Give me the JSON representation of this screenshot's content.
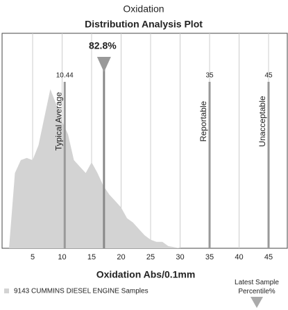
{
  "chart_data": {
    "type": "area",
    "title": "Oxidation",
    "subtitle": "Distribution Analysis Plot",
    "x_label": "Oxidation Abs/0.1mm",
    "x": [
      1,
      2,
      3,
      4,
      5,
      6,
      7,
      8,
      9,
      10,
      11,
      12,
      13,
      14,
      15,
      16,
      17,
      18,
      19,
      20,
      21,
      22,
      23,
      24,
      25,
      26,
      27,
      28,
      30
    ],
    "series": [
      {
        "name": "9143 CUMMINS DIESEL ENGINE Samples",
        "color": "#d3d3d3",
        "values": [
          0,
          35,
          41,
          42,
          41,
          48,
          61,
          74,
          67,
          59,
          53,
          41,
          38,
          35,
          40,
          35,
          29,
          25,
          22,
          19,
          14,
          12,
          9,
          6,
          4,
          3,
          3,
          1,
          0
        ]
      }
    ],
    "xlim": [
      0,
      48
    ],
    "xticks": [
      5,
      10,
      15,
      20,
      25,
      30,
      35,
      40,
      45
    ],
    "ylim": [
      0,
      100
    ],
    "grid": true,
    "reference_lines": [
      {
        "name": "Typical Average",
        "value": 10.44
      },
      {
        "name": "Reportable",
        "value": 35
      },
      {
        "name": "Unacceptable",
        "value": 45
      }
    ],
    "latest_sample": {
      "name": "Latest Sample Percentile%",
      "x": 17.1,
      "value": 82.8,
      "value_label": "82.8%"
    }
  }
}
